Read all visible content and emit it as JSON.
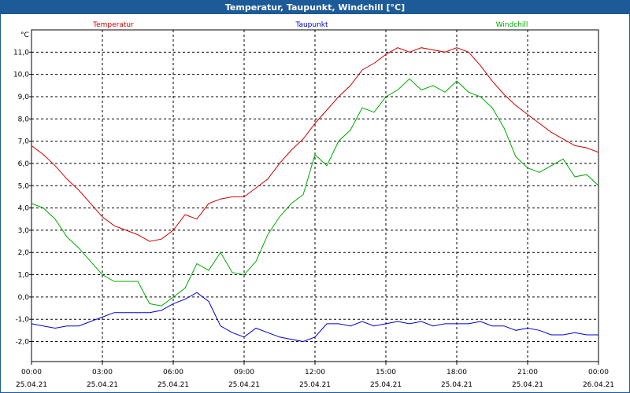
{
  "window": {
    "title": "Temperatur, Taupunkt, Windchill [°C]"
  },
  "chart_data": {
    "type": "line",
    "title": "Temperatur, Taupunkt, Windchill [°C]",
    "ylabel": "°C",
    "ylim": [
      -2.9,
      12.0
    ],
    "xlim": [
      0,
      24
    ],
    "yticks": [
      "-2,0",
      "-1,0",
      "0,0",
      "1,0",
      "2,0",
      "3,0",
      "4,0",
      "5,0",
      "6,0",
      "7,0",
      "8,0",
      "9,0",
      "10,0",
      "11,0"
    ],
    "ytick_values": [
      -2,
      -1,
      0,
      1,
      2,
      3,
      4,
      5,
      6,
      7,
      8,
      9,
      10,
      11
    ],
    "xticks": [
      {
        "time": "00:00",
        "date": "25.04.21",
        "x": 0
      },
      {
        "time": "03:00",
        "date": "25.04.21",
        "x": 3
      },
      {
        "time": "06:00",
        "date": "25.04.21",
        "x": 6
      },
      {
        "time": "09:00",
        "date": "25.04.21",
        "x": 9
      },
      {
        "time": "12:00",
        "date": "25.04.21",
        "x": 12
      },
      {
        "time": "15:00",
        "date": "25.04.21",
        "x": 15
      },
      {
        "time": "18:00",
        "date": "25.04.21",
        "x": 18
      },
      {
        "time": "21:00",
        "date": "25.04.21",
        "x": 21
      },
      {
        "time": "00:00",
        "date": "26.04.21",
        "x": 24
      }
    ],
    "grid": true,
    "legend_position": "top",
    "series": [
      {
        "name": "Temperatur",
        "color": "#cc0000",
        "x": [
          0,
          0.5,
          1,
          1.5,
          2,
          2.5,
          3,
          3.5,
          4,
          4.5,
          5,
          5.5,
          6,
          6.5,
          7,
          7.5,
          8,
          8.5,
          9,
          9.5,
          10,
          10.5,
          11,
          11.5,
          12,
          12.5,
          13,
          13.5,
          14,
          14.5,
          15,
          15.5,
          16,
          16.5,
          17,
          17.5,
          18,
          18.5,
          19,
          19.5,
          20,
          20.5,
          21,
          21.5,
          22,
          22.5,
          23,
          23.5,
          24
        ],
        "values": [
          6.8,
          6.4,
          5.9,
          5.3,
          4.8,
          4.2,
          3.6,
          3.2,
          3.0,
          2.8,
          2.5,
          2.6,
          3.0,
          3.7,
          3.5,
          4.2,
          4.4,
          4.5,
          4.5,
          4.9,
          5.3,
          6.0,
          6.6,
          7.1,
          7.8,
          8.4,
          9.0,
          9.5,
          10.2,
          10.5,
          10.9,
          11.2,
          11.0,
          11.2,
          11.1,
          11.0,
          11.2,
          11.0,
          10.4,
          9.7,
          9.1,
          8.6,
          8.2,
          7.8,
          7.4,
          7.1,
          6.8,
          6.7,
          6.5
        ]
      },
      {
        "name": "Taupunkt",
        "color": "#0000cc",
        "x": [
          0,
          0.5,
          1,
          1.5,
          2,
          2.5,
          3,
          3.5,
          4,
          4.5,
          5,
          5.5,
          6,
          6.5,
          7,
          7.5,
          8,
          8.5,
          9,
          9.5,
          10,
          10.5,
          11,
          11.5,
          12,
          12.5,
          13,
          13.5,
          14,
          14.5,
          15,
          15.5,
          16,
          16.5,
          17,
          17.5,
          18,
          18.5,
          19,
          19.5,
          20,
          20.5,
          21,
          21.5,
          22,
          22.5,
          23,
          23.5,
          24
        ],
        "values": [
          -1.2,
          -1.3,
          -1.4,
          -1.3,
          -1.3,
          -1.1,
          -0.9,
          -0.7,
          -0.7,
          -0.7,
          -0.7,
          -0.6,
          -0.3,
          -0.1,
          0.2,
          -0.2,
          -1.3,
          -1.6,
          -1.8,
          -1.4,
          -1.6,
          -1.8,
          -1.9,
          -2.0,
          -1.8,
          -1.2,
          -1.2,
          -1.3,
          -1.1,
          -1.3,
          -1.2,
          -1.1,
          -1.2,
          -1.1,
          -1.3,
          -1.2,
          -1.2,
          -1.2,
          -1.1,
          -1.3,
          -1.3,
          -1.5,
          -1.4,
          -1.5,
          -1.7,
          -1.7,
          -1.6,
          -1.7,
          -1.7
        ]
      },
      {
        "name": "Windchill",
        "color": "#00aa00",
        "x": [
          0,
          0.5,
          1,
          1.5,
          2,
          2.5,
          3,
          3.5,
          4,
          4.5,
          5,
          5.5,
          6,
          6.5,
          7,
          7.5,
          8,
          8.5,
          9,
          9.5,
          10,
          10.5,
          11,
          11.5,
          12,
          12.5,
          13,
          13.5,
          14,
          14.5,
          15,
          15.5,
          16,
          16.5,
          17,
          17.5,
          18,
          18.5,
          19,
          19.5,
          20,
          20.5,
          21,
          21.5,
          22,
          22.5,
          23,
          23.5,
          24
        ],
        "values": [
          4.2,
          4.0,
          3.5,
          2.7,
          2.2,
          1.6,
          1.0,
          0.7,
          0.7,
          0.7,
          -0.3,
          -0.4,
          0.0,
          0.4,
          1.5,
          1.2,
          2.0,
          1.1,
          1.0,
          1.6,
          2.8,
          3.6,
          4.2,
          4.6,
          6.4,
          5.9,
          7.0,
          7.5,
          8.5,
          8.3,
          9.0,
          9.3,
          9.8,
          9.3,
          9.5,
          9.2,
          9.7,
          9.2,
          9.0,
          8.5,
          7.6,
          6.3,
          5.8,
          5.6,
          5.9,
          6.2,
          5.4,
          5.5,
          5.0
        ]
      }
    ]
  }
}
